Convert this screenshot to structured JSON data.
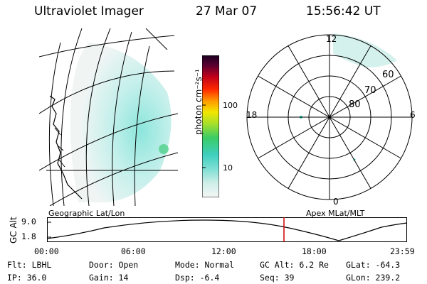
{
  "header": {
    "instrument": "Ultraviolet Imager",
    "date": "27 Mar 07",
    "time": "15:56:42 UT"
  },
  "colorbar": {
    "unit_label": "photon cm⁻²s⁻¹",
    "ticks": [
      "100",
      "10"
    ]
  },
  "geo_map": {
    "label": "Geographic Lat/Lon"
  },
  "polar_map": {
    "label": "Apex MLat/MLT",
    "mlt_labels": {
      "top": "12",
      "left": "18",
      "right": "6",
      "bottom": "0"
    },
    "lat_labels": [
      "60",
      "70",
      "80"
    ]
  },
  "altitude_plot": {
    "ylabel": "GC Alt",
    "yticks": [
      "9.0",
      "1.8"
    ],
    "xticks": [
      "00:00",
      "06:00",
      "12:00",
      "18:00",
      "23:59"
    ],
    "current_time_marker": "15:56:42",
    "colors": {
      "curve": "#000000",
      "marker": "#cc0000"
    }
  },
  "status": {
    "flt": "Flt: LBHL",
    "ip": "IP: 36.0",
    "door": "Door: Open",
    "gain": "Gain: 14",
    "mode": "Mode: Normal",
    "dsp": "Dsp:   -6.4",
    "gc_alt": "GC Alt: 6.2 Re",
    "seq": "Seq: 39",
    "glat": "GLat: -64.3",
    "glon": "GLon: 239.2"
  }
}
